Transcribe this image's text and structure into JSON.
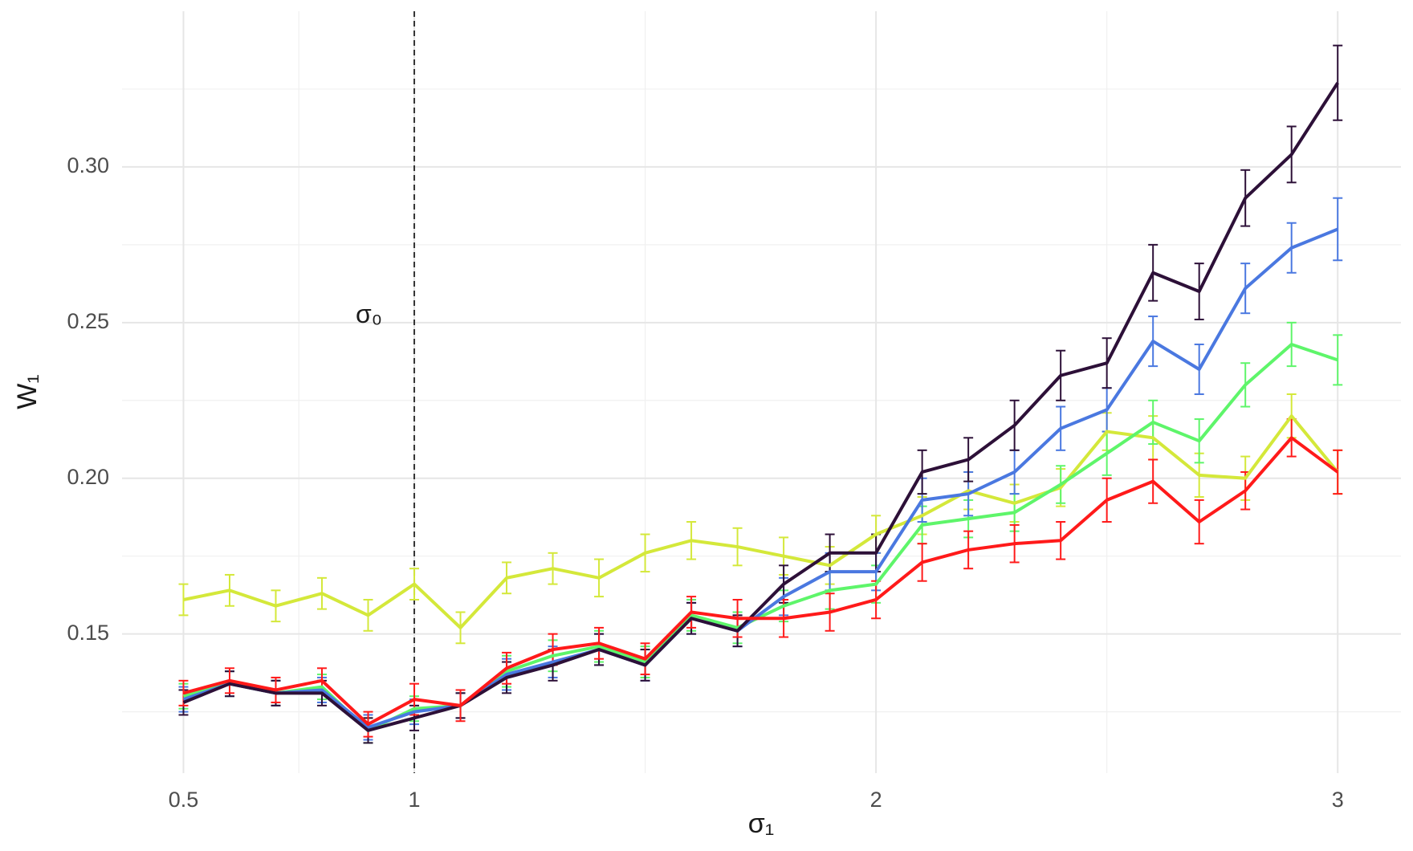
{
  "chart_data": {
    "type": "line",
    "x_label": "σ₁",
    "y_label": "W₁",
    "x": [
      0.5,
      0.6,
      0.7,
      0.8,
      0.9,
      1.0,
      1.1,
      1.2,
      1.3,
      1.4,
      1.5,
      1.6,
      1.7,
      1.8,
      1.9,
      2.0,
      2.1,
      2.2,
      2.3,
      2.4,
      2.5,
      2.6,
      2.7,
      2.8,
      2.9,
      3.0
    ],
    "series": [
      {
        "color": "#d4e83a",
        "values": [
          0.161,
          0.164,
          0.159,
          0.163,
          0.156,
          0.166,
          0.152,
          0.168,
          0.171,
          0.168,
          0.176,
          0.18,
          0.178,
          0.175,
          0.172,
          0.182,
          0.188,
          0.196,
          0.192,
          0.197,
          0.215,
          0.213,
          0.201,
          0.2,
          0.22,
          0.202
        ],
        "errors": [
          0.005,
          0.005,
          0.005,
          0.005,
          0.005,
          0.005,
          0.005,
          0.005,
          0.005,
          0.006,
          0.006,
          0.006,
          0.006,
          0.006,
          0.006,
          0.006,
          0.006,
          0.006,
          0.006,
          0.006,
          0.006,
          0.007,
          0.007,
          0.007,
          0.007,
          0.007
        ]
      },
      {
        "color": "#5ef56a",
        "values": [
          0.13,
          0.134,
          0.131,
          0.133,
          0.119,
          0.126,
          0.127,
          0.138,
          0.143,
          0.146,
          0.141,
          0.156,
          0.152,
          0.159,
          0.164,
          0.166,
          0.185,
          0.187,
          0.189,
          0.198,
          0.208,
          0.218,
          0.212,
          0.23,
          0.243,
          0.238
        ],
        "errors": [
          0.004,
          0.004,
          0.004,
          0.004,
          0.004,
          0.004,
          0.004,
          0.005,
          0.005,
          0.005,
          0.005,
          0.005,
          0.005,
          0.005,
          0.006,
          0.006,
          0.006,
          0.006,
          0.006,
          0.006,
          0.007,
          0.007,
          0.007,
          0.007,
          0.007,
          0.008
        ]
      },
      {
        "color": "#4a78e0",
        "values": [
          0.129,
          0.134,
          0.131,
          0.132,
          0.12,
          0.125,
          0.127,
          0.137,
          0.141,
          0.145,
          0.14,
          0.155,
          0.151,
          0.162,
          0.17,
          0.17,
          0.193,
          0.195,
          0.202,
          0.216,
          0.222,
          0.244,
          0.235,
          0.261,
          0.274,
          0.28
        ],
        "errors": [
          0.004,
          0.004,
          0.004,
          0.004,
          0.004,
          0.004,
          0.004,
          0.005,
          0.005,
          0.005,
          0.005,
          0.005,
          0.005,
          0.006,
          0.006,
          0.006,
          0.007,
          0.007,
          0.007,
          0.007,
          0.007,
          0.008,
          0.008,
          0.008,
          0.008,
          0.01
        ]
      },
      {
        "color": "#2d1038",
        "values": [
          0.128,
          0.134,
          0.131,
          0.131,
          0.119,
          0.123,
          0.127,
          0.136,
          0.14,
          0.145,
          0.14,
          0.155,
          0.151,
          0.166,
          0.176,
          0.176,
          0.202,
          0.206,
          0.217,
          0.233,
          0.237,
          0.266,
          0.26,
          0.29,
          0.304,
          0.327
        ],
        "errors": [
          0.004,
          0.004,
          0.004,
          0.004,
          0.004,
          0.004,
          0.004,
          0.005,
          0.005,
          0.005,
          0.005,
          0.005,
          0.005,
          0.006,
          0.006,
          0.006,
          0.007,
          0.007,
          0.008,
          0.008,
          0.008,
          0.009,
          0.009,
          0.009,
          0.009,
          0.012
        ]
      },
      {
        "color": "#ff1a1a",
        "values": [
          0.131,
          0.135,
          0.132,
          0.135,
          0.121,
          0.129,
          0.127,
          0.139,
          0.145,
          0.147,
          0.142,
          0.157,
          0.155,
          0.155,
          0.157,
          0.161,
          0.173,
          0.177,
          0.179,
          0.18,
          0.193,
          0.199,
          0.186,
          0.196,
          0.213,
          0.202
        ],
        "errors": [
          0.004,
          0.004,
          0.004,
          0.004,
          0.004,
          0.005,
          0.005,
          0.005,
          0.005,
          0.005,
          0.005,
          0.005,
          0.006,
          0.006,
          0.006,
          0.006,
          0.006,
          0.006,
          0.006,
          0.006,
          0.007,
          0.007,
          0.007,
          0.006,
          0.006,
          0.007
        ]
      }
    ],
    "xlim": [
      0.367,
      3.137
    ],
    "ylim": [
      0.1053,
      0.35
    ],
    "xticks": [
      0.5,
      1,
      2,
      3
    ],
    "yticks": [
      0.15,
      {
        "value": 0.2,
        "label": "0.20"
      },
      0.25,
      {
        "value": 0.3,
        "label": "0.30"
      }
    ],
    "grid": true,
    "minor_grid": true,
    "annotations": [
      {
        "x": 1,
        "text": "σ₀"
      }
    ]
  }
}
